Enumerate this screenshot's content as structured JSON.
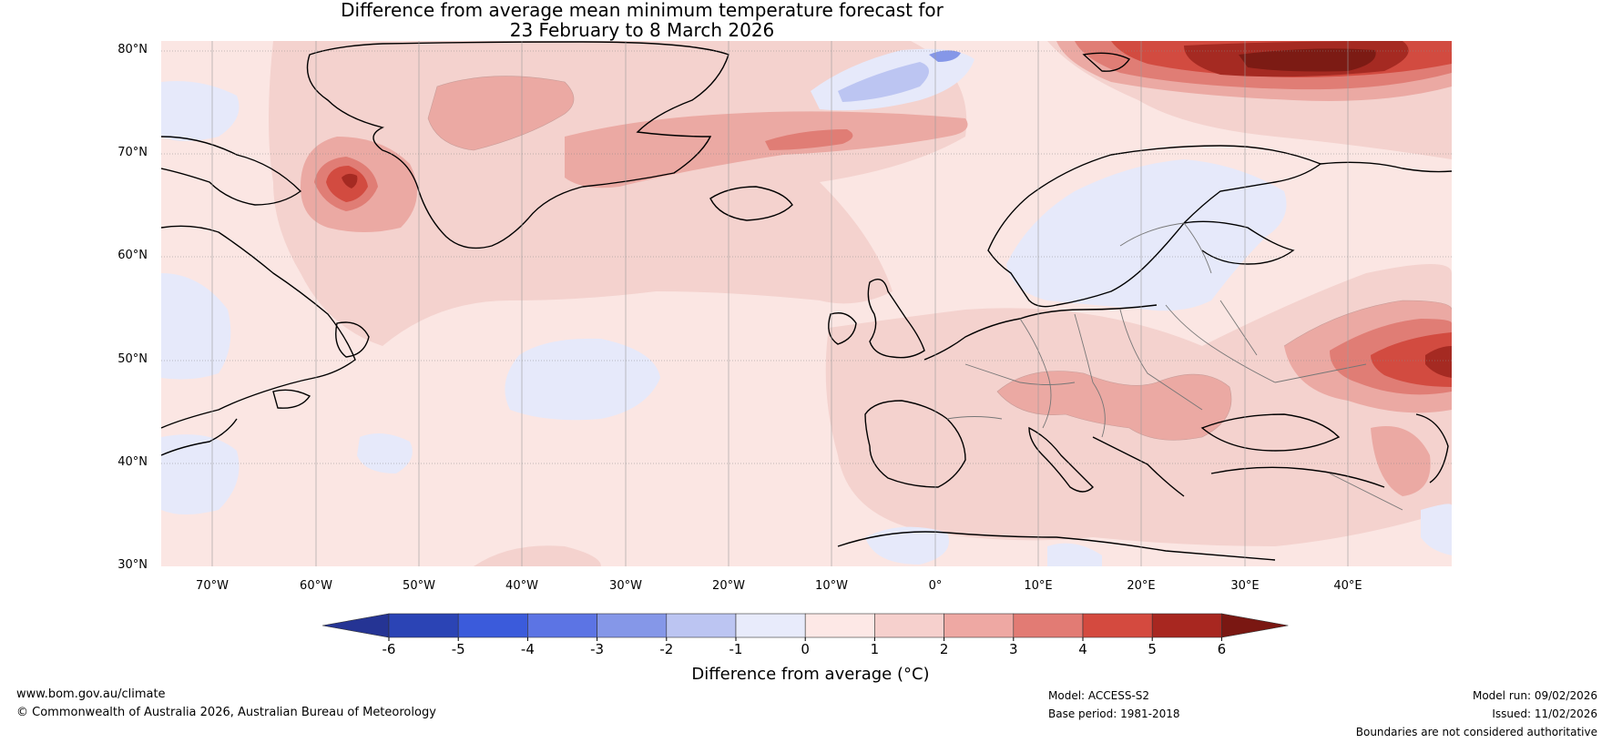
{
  "title": {
    "line1": "Difference from average mean minimum temperature forecast for",
    "line2": "23 February to 8 March 2026"
  },
  "map": {
    "lat_labels": [
      "80°N",
      "70°N",
      "60°N",
      "50°N",
      "40°N",
      "30°N"
    ],
    "lon_labels": [
      "70°W",
      "60°W",
      "50°W",
      "40°W",
      "30°W",
      "20°W",
      "10°W",
      "0°",
      "10°E",
      "20°E",
      "30°E",
      "40°E"
    ],
    "regions_shown": [
      "Greenland",
      "Iceland",
      "Scandinavia",
      "Europe",
      "North Atlantic",
      "Eastern North America"
    ]
  },
  "colorbar": {
    "ticks": [
      "-6",
      "-5",
      "-4",
      "-3",
      "-2",
      "-1",
      "0",
      "1",
      "2",
      "3",
      "4",
      "5",
      "6"
    ],
    "colors": [
      "#253494",
      "#2b44b5",
      "#3b5bdb",
      "#5c74e4",
      "#8597e8",
      "#bcc5f2",
      "#e8ebfb",
      "#fde8e6",
      "#f6d0cd",
      "#eea8a3",
      "#e27b74",
      "#d44a3f",
      "#a82720",
      "#7a1712"
    ],
    "label": "Difference from average (°C)"
  },
  "palette": {
    "base_warm": "#fbe6e3",
    "warm2": "#f4cfcb",
    "warm3": "#eca9a4",
    "warm4": "#e07c74",
    "warm5": "#d24b40",
    "warm6": "#a52a22",
    "warm7": "#7c1b14",
    "cool1": "#e6e9fa",
    "cool2": "#bcc5f2",
    "cool3": "#8597e8"
  },
  "footer": {
    "website": "www.bom.gov.au/climate",
    "copyright": "© Commonwealth of Australia 2026, Australian Bureau of Meteorology",
    "model": "Model: ACCESS-S2",
    "base_period": "Base period: 1981-2018",
    "model_run": "Model run: 09/02/2026",
    "issued": "Issued: 11/02/2026",
    "disclaimer": "Boundaries are not considered authoritative"
  }
}
